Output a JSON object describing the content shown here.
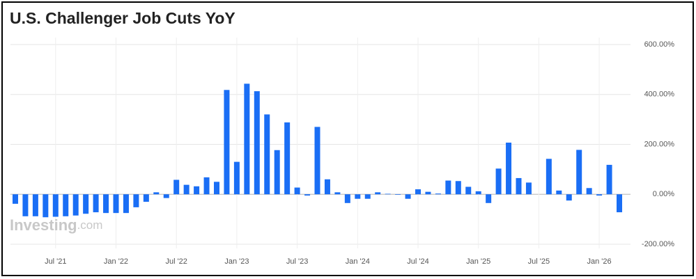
{
  "chart_data": {
    "type": "bar",
    "title": "U.S. Challenger Job Cuts YoY",
    "watermark": {
      "brand": "Investing",
      "suffix": ".com"
    },
    "color": "#1a6ef5",
    "grid": true,
    "categories": [
      null,
      null,
      null,
      null,
      "Jul '21",
      null,
      null,
      null,
      null,
      null,
      "Jan '22",
      null,
      null,
      null,
      null,
      null,
      "Jul '22",
      null,
      null,
      null,
      null,
      null,
      "Jan '23",
      null,
      null,
      null,
      null,
      null,
      "Jul '23",
      null,
      null,
      null,
      null,
      null,
      "Jan '24",
      null,
      null,
      null,
      null,
      null,
      "Jul '24",
      null,
      null,
      null,
      null,
      null,
      "Jan '25",
      null,
      null,
      null,
      null,
      null,
      "Jul '25",
      null,
      null,
      null,
      null,
      null,
      "Jan '26",
      null,
      null
    ],
    "values": [
      -38,
      -88,
      -88,
      -92,
      -90,
      -88,
      -85,
      -78,
      -72,
      -75,
      -75,
      -75,
      -52,
      -30,
      8,
      -15,
      58,
      38,
      32,
      68,
      50,
      418,
      130,
      443,
      413,
      320,
      177,
      288,
      27,
      -5,
      270,
      60,
      8,
      -35,
      -18,
      -18,
      8,
      2,
      -2,
      -18,
      20,
      10,
      3,
      55,
      53,
      30,
      12,
      -35,
      103,
      207,
      65,
      47,
      0,
      142,
      15,
      -25,
      178,
      25,
      -5,
      118,
      -72
    ],
    "ylim": [
      -200,
      600
    ],
    "yticks": [
      {
        "value": -200,
        "label": "-200.00%"
      },
      {
        "value": 0,
        "label": "0.00%"
      },
      {
        "value": 200,
        "label": "200.00%"
      },
      {
        "value": 400,
        "label": "400.00%"
      },
      {
        "value": 600,
        "label": "600.00%"
      }
    ]
  }
}
